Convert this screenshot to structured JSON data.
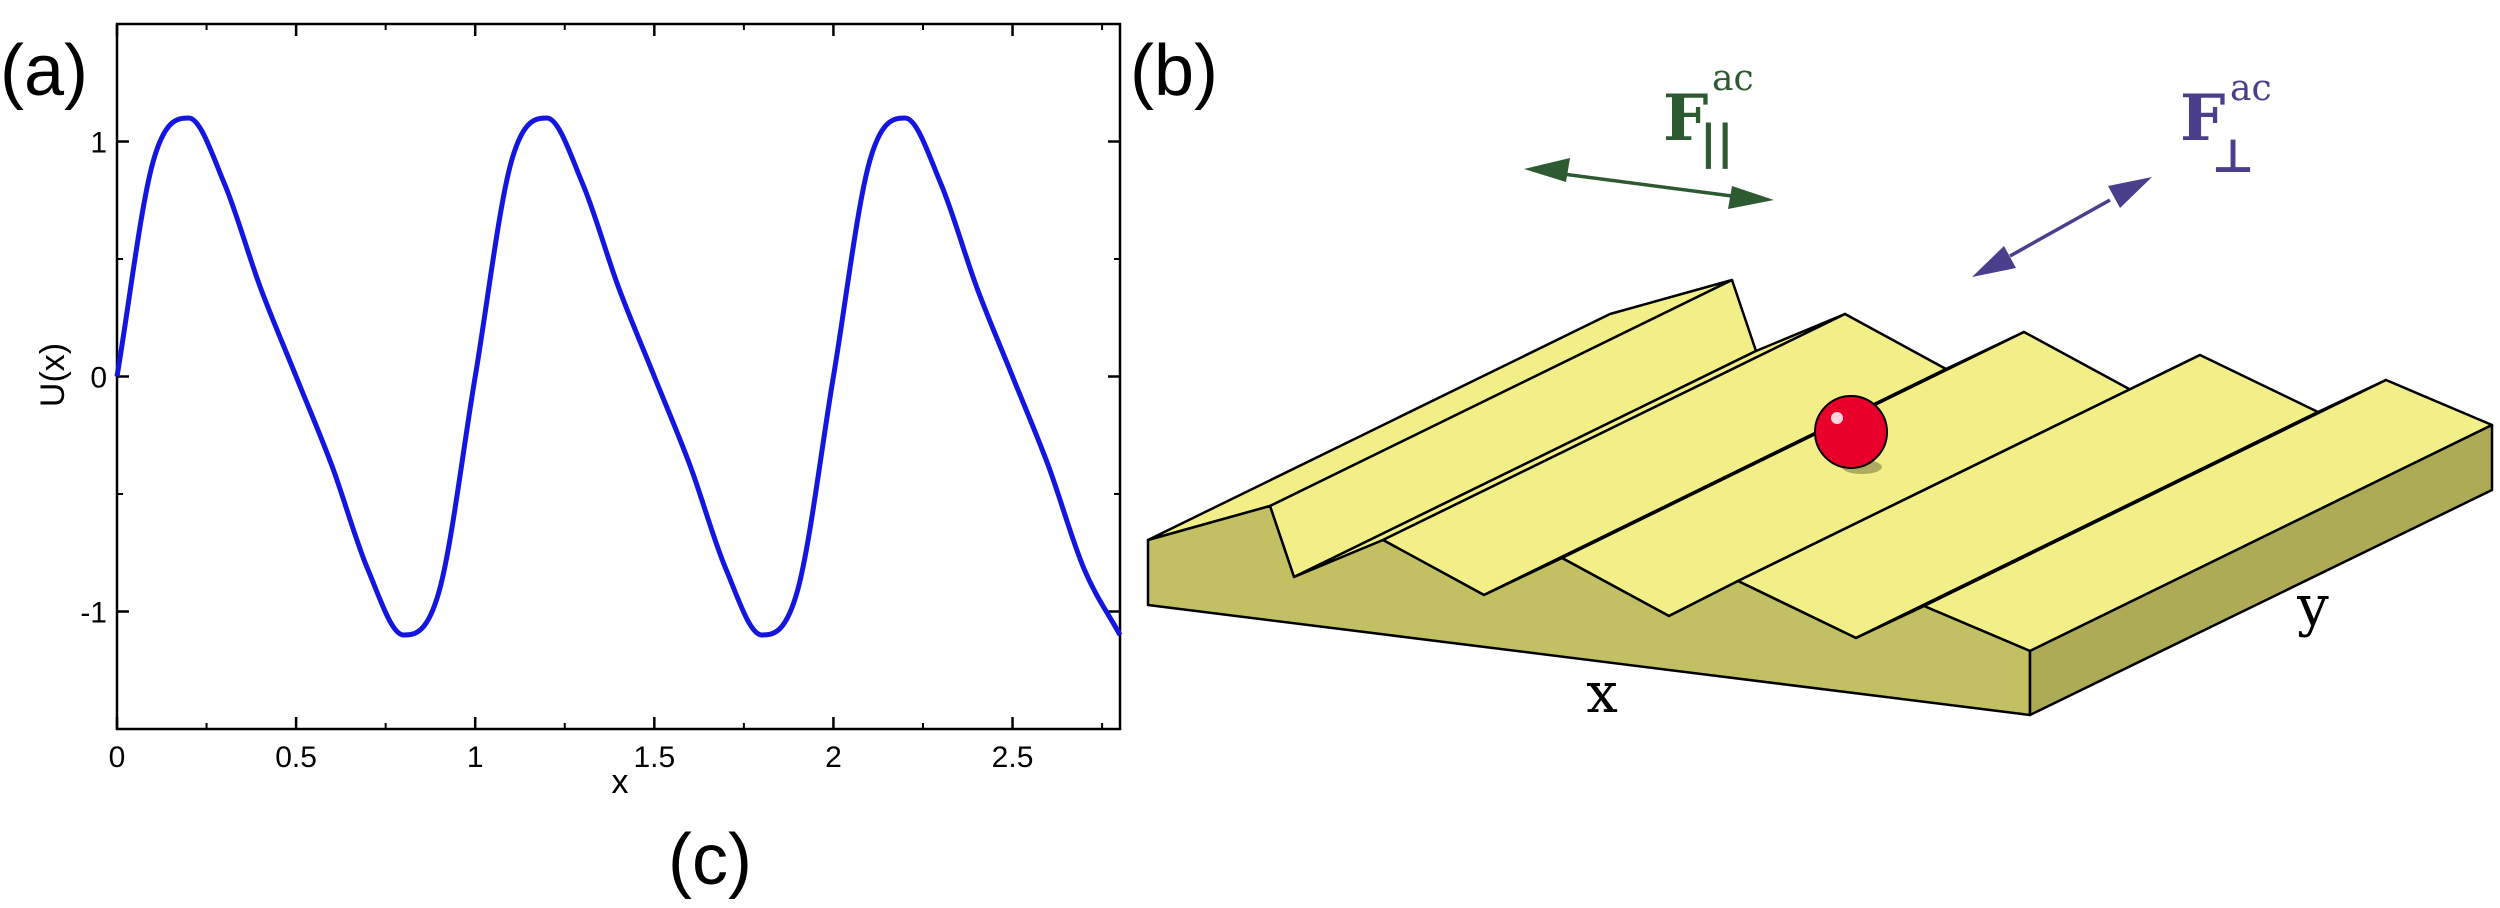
{
  "panels": {
    "a": "(a)",
    "b": "(b)",
    "c": "(c)"
  },
  "chart_data": {
    "type": "line",
    "title": "",
    "xlabel": "x",
    "ylabel": "U(x)",
    "xlim": [
      0,
      2.8
    ],
    "ylim": [
      -1.5,
      1.5
    ],
    "x_ticks": [
      "0",
      "0.5",
      "1",
      "1.5",
      "2",
      "2.5"
    ],
    "y_ticks": [
      "-1",
      "0",
      "1"
    ],
    "series": [
      {
        "color": "#1515e0",
        "x": [
          0,
          0.1,
          0.2,
          0.3,
          0.4,
          0.5,
          0.6,
          0.7,
          0.8,
          0.9,
          1.0,
          1.1,
          1.2,
          1.3,
          1.4,
          1.5,
          1.6,
          1.7,
          1.8,
          1.9,
          2.0,
          2.1,
          2.2,
          2.3,
          2.4,
          2.5,
          2.6,
          2.7,
          2.8
        ],
        "y": [
          0,
          0.91,
          1.1,
          0.82,
          0.38,
          0,
          -0.38,
          -0.82,
          -1.1,
          -0.91,
          0,
          0.91,
          1.1,
          0.82,
          0.38,
          0,
          -0.38,
          -0.82,
          -1.1,
          -0.91,
          0,
          0.91,
          1.1,
          0.82,
          0.38,
          0,
          -0.38,
          -0.82,
          -1.1
        ]
      }
    ],
    "grid": false,
    "legend": "none"
  },
  "diagram": {
    "x_label": "x",
    "y_label": "y",
    "force_parallel": {
      "main": "F",
      "sup": "ac",
      "sub": "||",
      "color": "#2e5a32"
    },
    "force_perp": {
      "main": "F",
      "sup": "ac",
      "sub": "⊥",
      "color": "#4a3f8c"
    },
    "surface_top_color": "#f2ef88",
    "surface_front_color": "#c3c063",
    "surface_side_color": "#aeab57",
    "particle_color": "#e8002b"
  }
}
